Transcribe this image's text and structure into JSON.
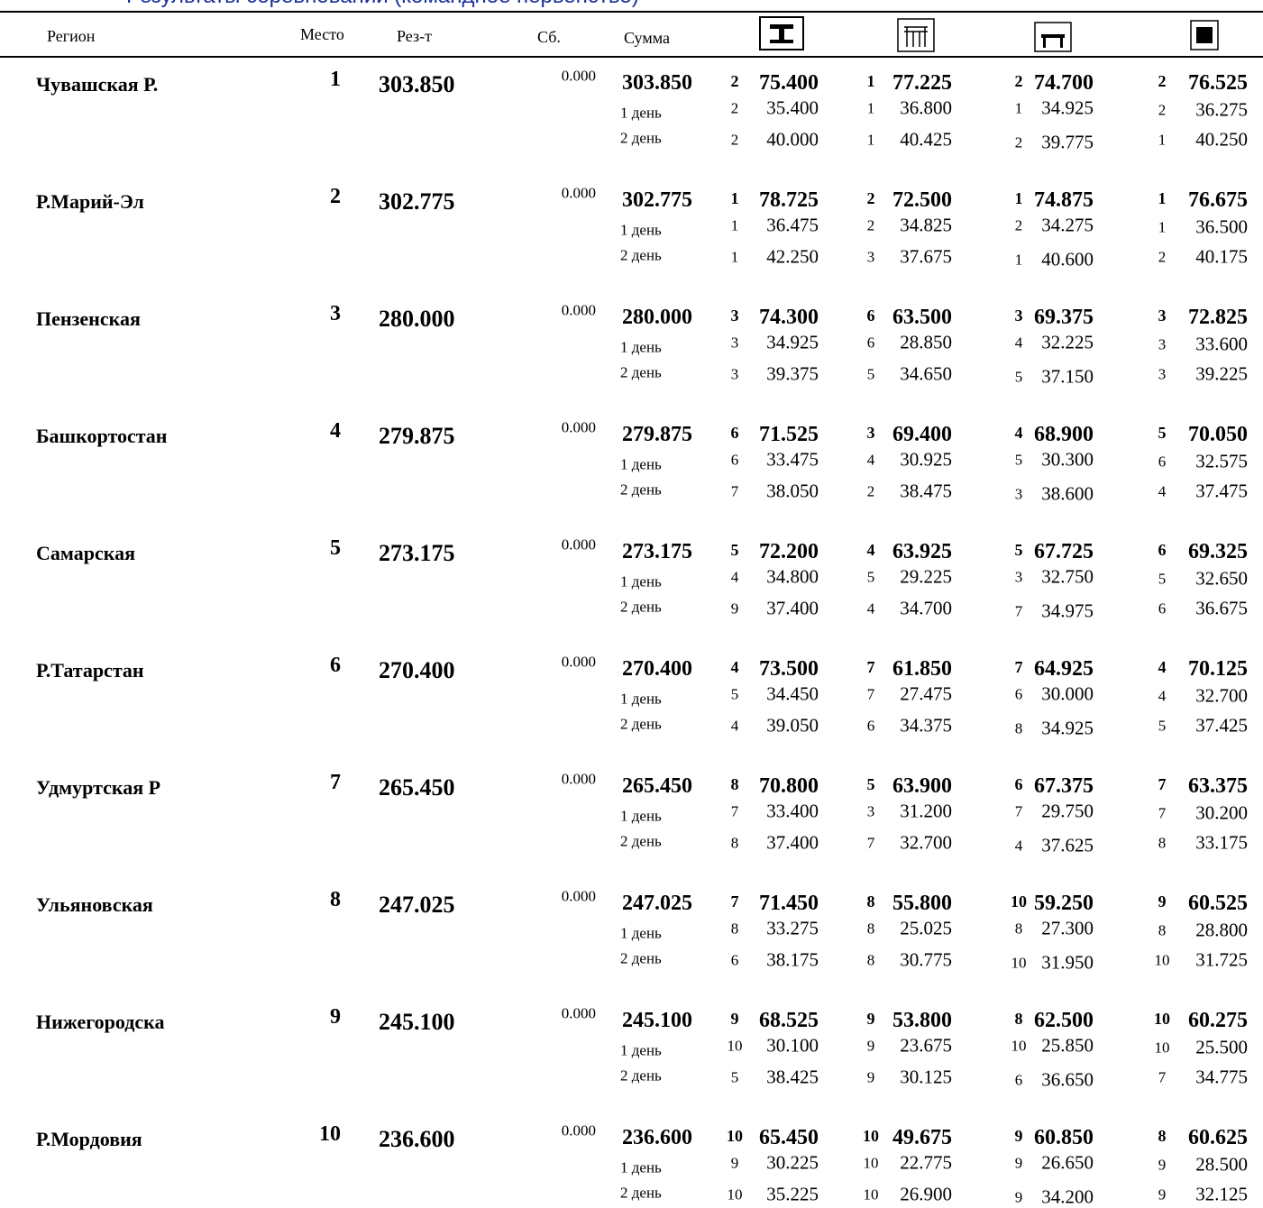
{
  "header": {
    "title": "Результаты соревнований (командное первенство)",
    "columns": [
      "Регион",
      "Место",
      "Рез-т",
      "Сб.",
      "Сумма"
    ],
    "day_labels": [
      "1 день",
      "2 день"
    ]
  },
  "table": {
    "rows": [
      {
        "region": "Чувашская Р.",
        "place": "1",
        "result": "303.850",
        "sb": "0.000",
        "sum": "303.850",
        "apparatus": [
          [
            "2",
            "75.400",
            "2",
            "35.400",
            "2",
            "40.000"
          ],
          [
            "1",
            "77.225",
            "1",
            "36.800",
            "1",
            "40.425"
          ],
          [
            "2",
            "74.700",
            "1",
            "34.925",
            "2",
            "39.775"
          ],
          [
            "2",
            "76.525",
            "2",
            "36.275",
            "1",
            "40.250"
          ]
        ]
      },
      {
        "region": "Р.Марий-Эл",
        "place": "2",
        "result": "302.775",
        "sb": "0.000",
        "sum": "302.775",
        "apparatus": [
          [
            "1",
            "78.725",
            "1",
            "36.475",
            "1",
            "42.250"
          ],
          [
            "2",
            "72.500",
            "2",
            "34.825",
            "3",
            "37.675"
          ],
          [
            "1",
            "74.875",
            "2",
            "34.275",
            "1",
            "40.600"
          ],
          [
            "1",
            "76.675",
            "1",
            "36.500",
            "2",
            "40.175"
          ]
        ]
      },
      {
        "region": "Пензенская",
        "place": "3",
        "result": "280.000",
        "sb": "0.000",
        "sum": "280.000",
        "apparatus": [
          [
            "3",
            "74.300",
            "3",
            "34.925",
            "3",
            "39.375"
          ],
          [
            "6",
            "63.500",
            "6",
            "28.850",
            "5",
            "34.650"
          ],
          [
            "3",
            "69.375",
            "4",
            "32.225",
            "5",
            "37.150"
          ],
          [
            "3",
            "72.825",
            "3",
            "33.600",
            "3",
            "39.225"
          ]
        ]
      },
      {
        "region": "Башкортостан",
        "place": "4",
        "result": "279.875",
        "sb": "0.000",
        "sum": "279.875",
        "apparatus": [
          [
            "6",
            "71.525",
            "6",
            "33.475",
            "7",
            "38.050"
          ],
          [
            "3",
            "69.400",
            "4",
            "30.925",
            "2",
            "38.475"
          ],
          [
            "4",
            "68.900",
            "5",
            "30.300",
            "3",
            "38.600"
          ],
          [
            "5",
            "70.050",
            "6",
            "32.575",
            "4",
            "37.475"
          ]
        ]
      },
      {
        "region": "Самарская",
        "place": "5",
        "result": "273.175",
        "sb": "0.000",
        "sum": "273.175",
        "apparatus": [
          [
            "5",
            "72.200",
            "4",
            "34.800",
            "9",
            "37.400"
          ],
          [
            "4",
            "63.925",
            "5",
            "29.225",
            "4",
            "34.700"
          ],
          [
            "5",
            "67.725",
            "3",
            "32.750",
            "7",
            "34.975"
          ],
          [
            "6",
            "69.325",
            "5",
            "32.650",
            "6",
            "36.675"
          ]
        ]
      },
      {
        "region": "Р.Татарстан",
        "place": "6",
        "result": "270.400",
        "sb": "0.000",
        "sum": "270.400",
        "apparatus": [
          [
            "4",
            "73.500",
            "5",
            "34.450",
            "4",
            "39.050"
          ],
          [
            "7",
            "61.850",
            "7",
            "27.475",
            "6",
            "34.375"
          ],
          [
            "7",
            "64.925",
            "6",
            "30.000",
            "8",
            "34.925"
          ],
          [
            "4",
            "70.125",
            "4",
            "32.700",
            "5",
            "37.425"
          ]
        ]
      },
      {
        "region": "Удмуртская Р",
        "place": "7",
        "result": "265.450",
        "sb": "0.000",
        "sum": "265.450",
        "apparatus": [
          [
            "8",
            "70.800",
            "7",
            "33.400",
            "8",
            "37.400"
          ],
          [
            "5",
            "63.900",
            "3",
            "31.200",
            "7",
            "32.700"
          ],
          [
            "6",
            "67.375",
            "7",
            "29.750",
            "4",
            "37.625"
          ],
          [
            "7",
            "63.375",
            "7",
            "30.200",
            "8",
            "33.175"
          ]
        ]
      },
      {
        "region": "Ульяновская",
        "place": "8",
        "result": "247.025",
        "sb": "0.000",
        "sum": "247.025",
        "apparatus": [
          [
            "7",
            "71.450",
            "8",
            "33.275",
            "6",
            "38.175"
          ],
          [
            "8",
            "55.800",
            "8",
            "25.025",
            "8",
            "30.775"
          ],
          [
            "10",
            "59.250",
            "8",
            "27.300",
            "10",
            "31.950"
          ],
          [
            "9",
            "60.525",
            "8",
            "28.800",
            "10",
            "31.725"
          ]
        ]
      },
      {
        "region": "Нижегородска",
        "place": "9",
        "result": "245.100",
        "sb": "0.000",
        "sum": "245.100",
        "apparatus": [
          [
            "9",
            "68.525",
            "10",
            "30.100",
            "5",
            "38.425"
          ],
          [
            "9",
            "53.800",
            "9",
            "23.675",
            "9",
            "30.125"
          ],
          [
            "8",
            "62.500",
            "10",
            "25.850",
            "6",
            "36.650"
          ],
          [
            "10",
            "60.275",
            "10",
            "25.500",
            "7",
            "34.775"
          ]
        ]
      },
      {
        "region": "Р.Мордовия",
        "place": "10",
        "result": "236.600",
        "sb": "0.000",
        "sum": "236.600",
        "apparatus": [
          [
            "10",
            "65.450",
            "9",
            "30.225",
            "10",
            "35.225"
          ],
          [
            "10",
            "49.675",
            "10",
            "22.775",
            "10",
            "26.900"
          ],
          [
            "9",
            "60.850",
            "9",
            "26.650",
            "9",
            "34.200"
          ],
          [
            "8",
            "60.625",
            "9",
            "28.500",
            "9",
            "32.125"
          ]
        ]
      }
    ]
  }
}
